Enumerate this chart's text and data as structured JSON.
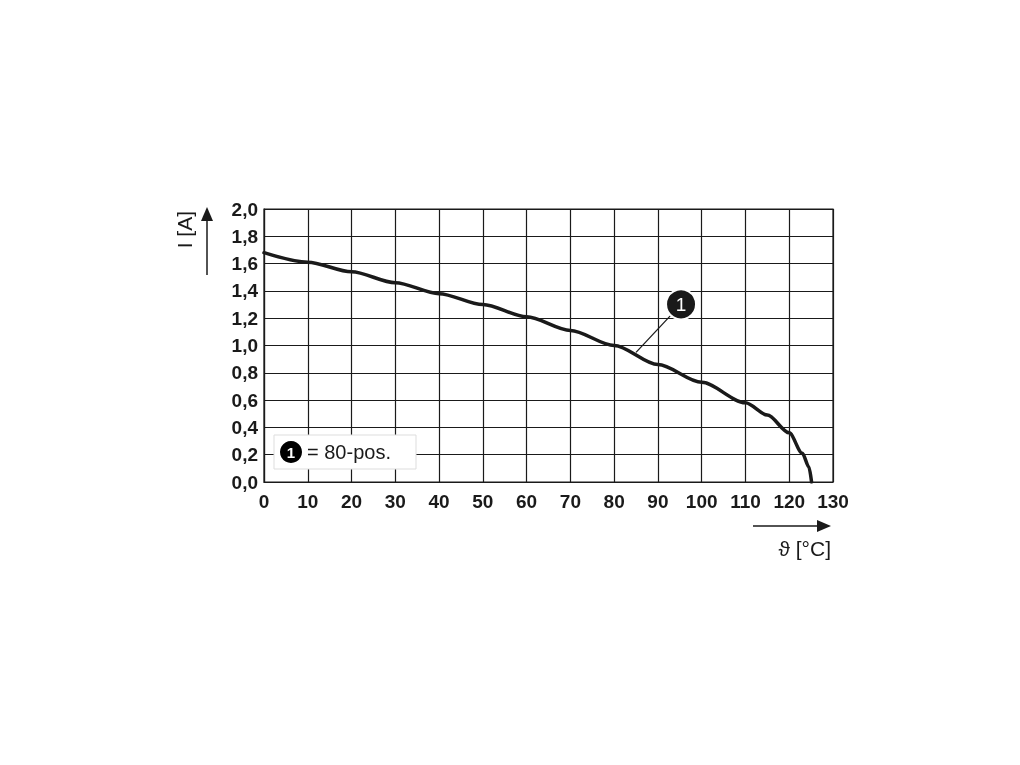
{
  "chart_data": {
    "type": "line",
    "xlabel": "ϑ [°C]",
    "ylabel": "I [A]",
    "x": [
      0,
      10,
      20,
      30,
      40,
      50,
      60,
      70,
      80,
      90,
      100,
      110,
      115,
      120,
      123,
      124.5,
      125.1
    ],
    "series": [
      {
        "color": "#1a1a1a",
        "values": [
          1.68,
          1.61,
          1.54,
          1.46,
          1.38,
          1.3,
          1.21,
          1.11,
          1.0,
          0.86,
          0.73,
          0.58,
          0.49,
          0.36,
          0.21,
          0.11,
          0
        ]
      }
    ],
    "xlim": [
      0,
      130
    ],
    "xticks": [
      0,
      10,
      20,
      30,
      40,
      50,
      60,
      70,
      80,
      90,
      100,
      110,
      120,
      130
    ],
    "ylim": [
      0,
      2
    ],
    "yticks": [
      {
        "value": 0,
        "label": "0,0"
      },
      {
        "value": 0.2,
        "label": "0,2"
      },
      {
        "value": 0.4,
        "label": "0,4"
      },
      {
        "value": 0.6,
        "label": "0,6"
      },
      {
        "value": 0.8,
        "label": "0,8"
      },
      {
        "value": 1,
        "label": "1,0"
      },
      {
        "value": 1.2,
        "label": "1,2"
      },
      {
        "value": 1.4,
        "label": "1,4"
      },
      {
        "value": 1.6,
        "label": "1,6"
      },
      {
        "value": 1.8,
        "label": "1,8"
      },
      {
        "value": 2,
        "label": "2,0"
      }
    ],
    "grid": true,
    "marker": "none",
    "line_style": "solid",
    "annotations": [
      {
        "text": "1",
        "x": 85,
        "y": 0.95
      },
      "1 = 80-pos."
    ]
  }
}
